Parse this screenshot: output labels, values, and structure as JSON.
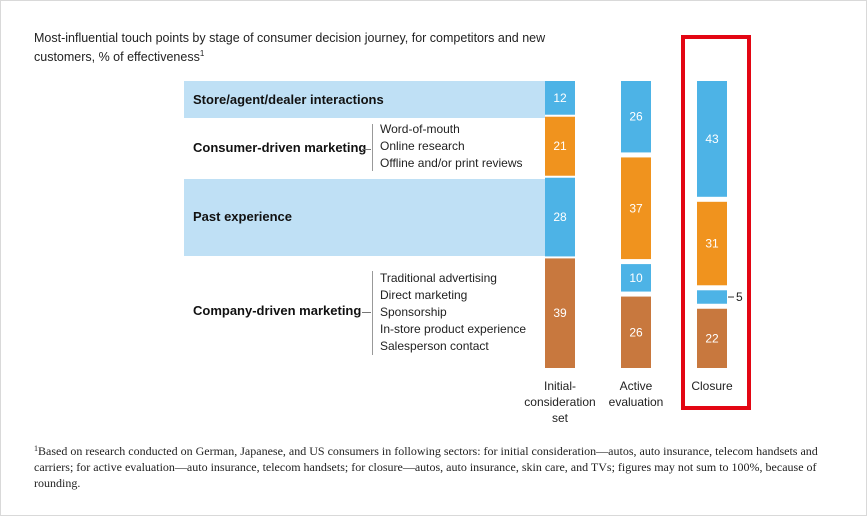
{
  "subtitle": "Most-influential touch points by stage of consumer decision journey, for competitors and new customers, % of effectiveness",
  "subtitle_note_marker": "1",
  "groups": [
    {
      "label": "Store/agent/dealer interactions",
      "items": []
    },
    {
      "label": "Consumer-driven marketing",
      "items": [
        "Word-of-mouth",
        "Online research",
        "Offline and/or print reviews"
      ]
    },
    {
      "label": "Past experience",
      "items": []
    },
    {
      "label": "Company-driven marketing",
      "items": [
        "Traditional advertising",
        "Direct marketing",
        "Sponsorship",
        "In-store product experience",
        "Salesperson contact"
      ]
    }
  ],
  "colors": {
    "store": "#4db3e6",
    "consumer": "#f0931e",
    "past": "#4db3e6",
    "company": "#c8783e",
    "band": "#bfe0f5",
    "highlight": "#e30613"
  },
  "chart_data": {
    "type": "bar",
    "stacked": true,
    "categories": [
      "Initial-consideration set",
      "Active evaluation",
      "Closure"
    ],
    "category_labels": [
      [
        "Initial-",
        "consideration",
        "set"
      ],
      [
        "Active",
        "evaluation"
      ],
      [
        "Closure"
      ]
    ],
    "series": [
      {
        "name": "Store/agent/dealer interactions",
        "values": [
          12,
          26,
          43
        ]
      },
      {
        "name": "Consumer-driven marketing",
        "values": [
          21,
          37,
          31
        ]
      },
      {
        "name": "Past experience",
        "values": [
          28,
          10,
          5
        ]
      },
      {
        "name": "Company-driven marketing",
        "values": [
          39,
          26,
          22
        ]
      }
    ],
    "outside_labels": [
      [
        null,
        null,
        null,
        null
      ],
      [
        null,
        null,
        null,
        null
      ],
      [
        null,
        null,
        "5",
        null
      ]
    ],
    "highlighted_category": "Closure"
  },
  "footnote_marker": "1",
  "footnote": "Based on research conducted on German, Japanese, and US consumers in following sectors: for initial consideration—autos, auto insurance, telecom handsets and carriers; for active evaluation—auto insurance, telecom handsets; for closure—autos, auto insurance, skin care, and TVs; figures may not sum to 100%, because of rounding."
}
